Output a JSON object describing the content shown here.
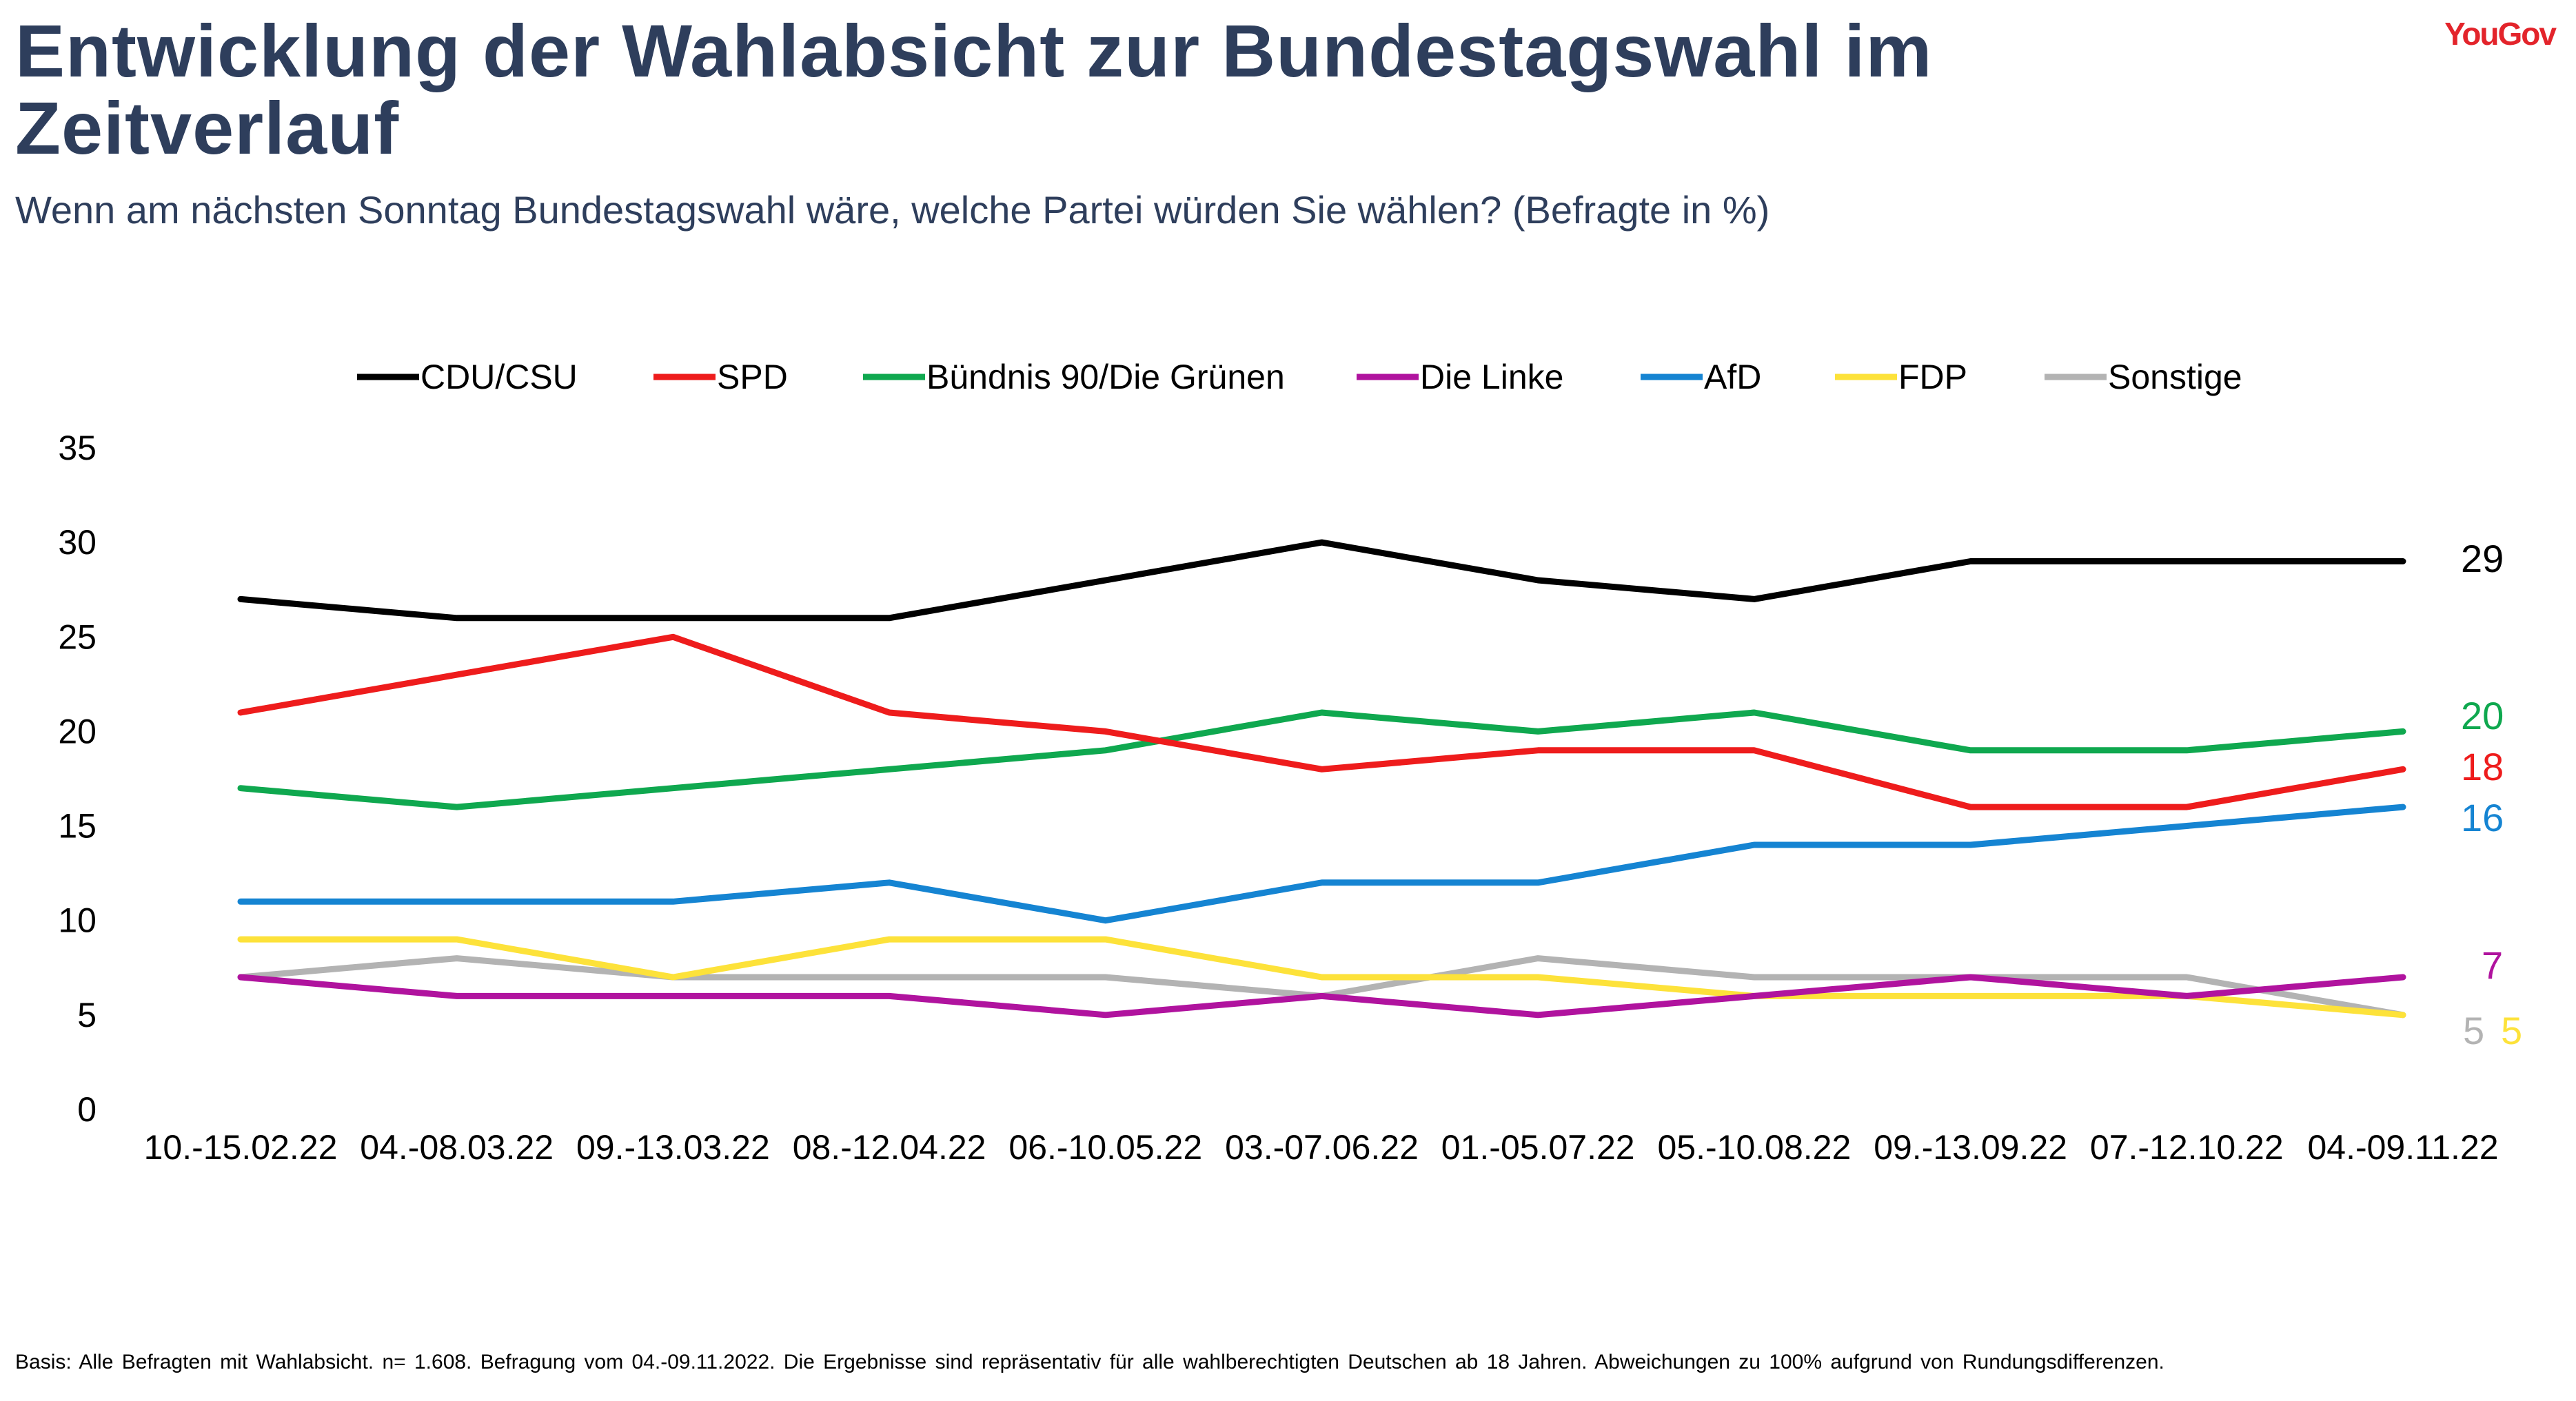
{
  "header": {
    "title": "Entwicklung der Wahlabsicht zur Bundestagswahl im Zeitverlauf",
    "subtitle": "Wenn am nächsten Sonntag Bundestagswahl wäre, welche Partei würden Sie wählen? (Befragte in %)",
    "logo_text": "YouGov"
  },
  "footnote": "Basis: Alle Befragten mit Wahlabsicht. n= 1.608. Befragung vom 04.-09.11.2022. Die Ergebnisse sind repräsentativ für alle wahlberechtigten Deutschen ab 18 Jahren. Abweichungen zu 100% aufgrund von Rundungsdifferenzen.",
  "chart_data": {
    "type": "line",
    "title": "Entwicklung der Wahlabsicht zur Bundestagswahl im Zeitverlauf",
    "subtitle": "Wenn am nächsten Sonntag Bundestagswahl wäre, welche Partei würden Sie wählen? (Befragte in %)",
    "xlabel": "",
    "ylabel": "",
    "ylim": [
      0,
      35
    ],
    "yticks": [
      0,
      5,
      10,
      15,
      20,
      25,
      30,
      35
    ],
    "grid": false,
    "legend": "top",
    "categories": [
      "10.-15.02.22",
      "04.-08.03.22",
      "09.-13.03.22",
      "08.-12.04.22",
      "06.-10.05.22",
      "03.-07.06.22",
      "01.-05.07.22",
      "05.-10.08.22",
      "09.-13.09.22",
      "07.-12.10.22",
      "04.-09.11.22"
    ],
    "series": [
      {
        "name": "CDU/CSU",
        "color": "#000000",
        "values": [
          27,
          26,
          26,
          26,
          28,
          30,
          28,
          27,
          29,
          29,
          29
        ],
        "end_label": "29"
      },
      {
        "name": "SPD",
        "color": "#ee1c1c",
        "values": [
          21,
          23,
          25,
          21,
          20,
          18,
          19,
          19,
          16,
          16,
          18
        ],
        "end_label": "18"
      },
      {
        "name": "Bündnis 90/Die Grünen",
        "color": "#0fa84f",
        "values": [
          17,
          16,
          17,
          18,
          19,
          21,
          20,
          21,
          19,
          19,
          20
        ],
        "end_label": "20"
      },
      {
        "name": "Die Linke",
        "color": "#b0139e",
        "values": [
          7,
          6,
          6,
          6,
          5,
          6,
          5,
          6,
          7,
          6,
          7
        ],
        "end_label": "7"
      },
      {
        "name": "AfD",
        "color": "#1584d2",
        "values": [
          11,
          11,
          11,
          12,
          10,
          12,
          12,
          14,
          14,
          15,
          16
        ],
        "end_label": "16"
      },
      {
        "name": "FDP",
        "color": "#fde23a",
        "values": [
          9,
          9,
          7,
          9,
          9,
          7,
          7,
          6,
          6,
          6,
          5
        ],
        "end_label": "5"
      },
      {
        "name": "Sonstige",
        "color": "#b3b3b3",
        "values": [
          7,
          8,
          7,
          7,
          7,
          6,
          8,
          7,
          7,
          7,
          5
        ],
        "end_label": "5"
      }
    ]
  }
}
